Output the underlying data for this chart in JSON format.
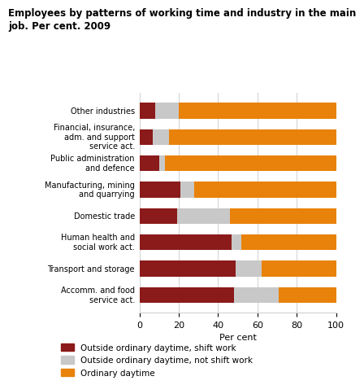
{
  "title": "Employees by patterns of working time and industry in the main\njob. Per cent. 2009",
  "categories": [
    "Other industries",
    "Financial, insurance,\nadm. and support\nservice act.",
    "Public administration\nand defence",
    "Manufacturing, mining\nand quarrying",
    "Domestic trade",
    "Human health and\nsocial work act.",
    "Transport and storage",
    "Accomm. and food\nservice act."
  ],
  "shift_work": [
    8,
    7,
    10,
    21,
    19,
    47,
    49,
    48
  ],
  "not_shift": [
    12,
    8,
    3,
    7,
    27,
    5,
    13,
    23
  ],
  "ordinary": [
    80,
    85,
    87,
    72,
    54,
    48,
    38,
    29
  ],
  "colors": {
    "shift_work": "#8B1A1A",
    "not_shift": "#C8C8C8",
    "ordinary": "#E8820A"
  },
  "legend_labels": [
    "Outside ordinary daytime, shift work",
    "Outside ordinary daytime, not shift work",
    "Ordinary daytime"
  ],
  "xlabel": "Per cent",
  "xlim": [
    0,
    100
  ],
  "xticks": [
    0,
    20,
    40,
    60,
    80,
    100
  ],
  "background_color": "#ffffff",
  "grid_color": "#d0d0d0"
}
